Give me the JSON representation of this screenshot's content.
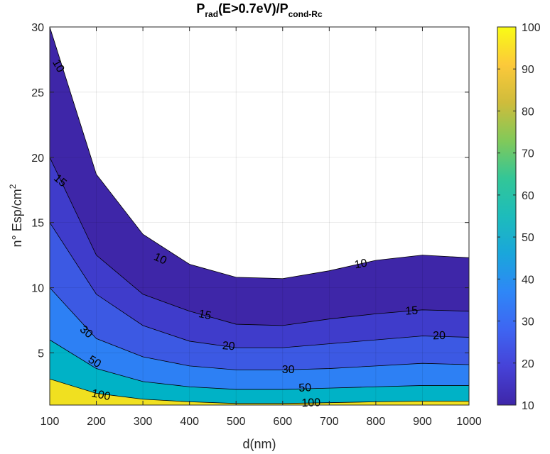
{
  "chart_data": {
    "type": "contourf",
    "title": {
      "main": "P",
      "sub1": "rad",
      "mid": "(E>0.7eV)/P",
      "sub2": "cond-Rc"
    },
    "xlabel": "d(nm)",
    "ylabel": {
      "main": "n° Esp/cm",
      "sup": "2"
    },
    "xlim": [
      100,
      1000
    ],
    "ylim": [
      1,
      30
    ],
    "xticks": [
      100,
      200,
      300,
      400,
      500,
      600,
      700,
      800,
      900,
      1000
    ],
    "yticks": [
      5,
      10,
      15,
      20,
      25,
      30
    ],
    "grid": true,
    "minor_grid": true,
    "x": [
      100,
      200,
      300,
      400,
      500,
      600,
      700,
      800,
      900,
      1000
    ],
    "contours": [
      {
        "level": 10,
        "y": [
          30.0,
          18.7,
          14.1,
          11.8,
          10.8,
          10.7,
          11.3,
          12.1,
          12.5,
          12.3
        ]
      },
      {
        "level": 15,
        "y": [
          20.0,
          12.5,
          9.5,
          8.2,
          7.2,
          7.1,
          7.6,
          8.0,
          8.3,
          8.2
        ]
      },
      {
        "level": 20,
        "y": [
          15.0,
          9.5,
          7.1,
          5.9,
          5.4,
          5.4,
          5.7,
          6.0,
          6.3,
          6.2
        ]
      },
      {
        "level": 30,
        "y": [
          10.0,
          6.1,
          4.7,
          4.0,
          3.7,
          3.7,
          3.8,
          4.0,
          4.2,
          4.1
        ]
      },
      {
        "level": 50,
        "y": [
          6.0,
          3.8,
          2.8,
          2.4,
          2.2,
          2.2,
          2.3,
          2.4,
          2.5,
          2.5
        ]
      },
      {
        "level": 100,
        "y": [
          3.0,
          1.9,
          1.45,
          1.25,
          1.12,
          1.12,
          1.18,
          1.25,
          1.3,
          1.3
        ]
      }
    ],
    "contour_labels": [
      {
        "text": "10",
        "x": 118,
        "y": 27.0,
        "angle": 62
      },
      {
        "text": "15",
        "x": 122,
        "y": 18.2,
        "angle": 40
      },
      {
        "text": "10",
        "x": 337,
        "y": 12.2,
        "angle": 25
      },
      {
        "text": "10",
        "x": 768,
        "y": 11.8,
        "angle": -10
      },
      {
        "text": "15",
        "x": 433,
        "y": 7.9,
        "angle": 12
      },
      {
        "text": "15",
        "x": 877,
        "y": 8.2,
        "angle": -4
      },
      {
        "text": "20",
        "x": 484,
        "y": 5.5,
        "angle": 4
      },
      {
        "text": "20",
        "x": 936,
        "y": 6.3,
        "angle": -2
      },
      {
        "text": "30",
        "x": 178,
        "y": 6.6,
        "angle": 40
      },
      {
        "text": "30",
        "x": 612,
        "y": 3.7,
        "angle": 0
      },
      {
        "text": "50",
        "x": 196,
        "y": 4.3,
        "angle": 32
      },
      {
        "text": "50",
        "x": 648,
        "y": 2.3,
        "angle": -3
      },
      {
        "text": "100",
        "x": 210,
        "y": 1.75,
        "angle": 12
      },
      {
        "text": "100",
        "x": 661,
        "y": 1.15,
        "angle": -2
      }
    ],
    "fill_colors": [
      "#ffffff",
      "#3e26a8",
      "#3f3ccb",
      "#3c59e3",
      "#2d80f4",
      "#00b2c6",
      "#f0e020"
    ],
    "colorbar": {
      "ticks": [
        10,
        20,
        30,
        40,
        50,
        60,
        70,
        80,
        90,
        100
      ],
      "range": [
        10,
        100
      ],
      "colormap": [
        "#3e26a8",
        "#4642d7",
        "#3e65f2",
        "#2e87f7",
        "#1aa6db",
        "#1dbcbb",
        "#33c697",
        "#82c959",
        "#cfbc3b",
        "#fcc93a",
        "#f9fb15"
      ]
    }
  }
}
